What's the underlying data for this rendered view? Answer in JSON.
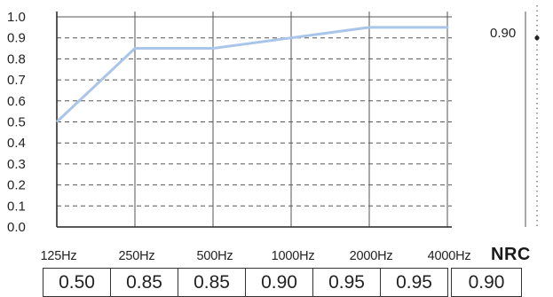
{
  "chart_data": {
    "type": "line",
    "categories": [
      "125Hz",
      "250Hz",
      "500Hz",
      "1000Hz",
      "2000Hz",
      "4000Hz"
    ],
    "series": [
      {
        "values": [
          0.5,
          0.85,
          0.85,
          0.9,
          0.95,
          0.95
        ],
        "color": "#a9c5e9"
      }
    ],
    "ylim": [
      0.0,
      1.0
    ],
    "yticks": [
      "1.0",
      "0.9",
      "0.8",
      "0.7",
      "0.6",
      "0.5",
      "0.4",
      "0.3",
      "0.2",
      "0.1",
      "0.0"
    ],
    "grid": true,
    "nrc_label": "NRC",
    "nrc_value": "0.90",
    "nrc_marker_label": "0.90",
    "value_row": [
      "0.50",
      "0.85",
      "0.85",
      "0.90",
      "0.95",
      "0.95"
    ]
  }
}
